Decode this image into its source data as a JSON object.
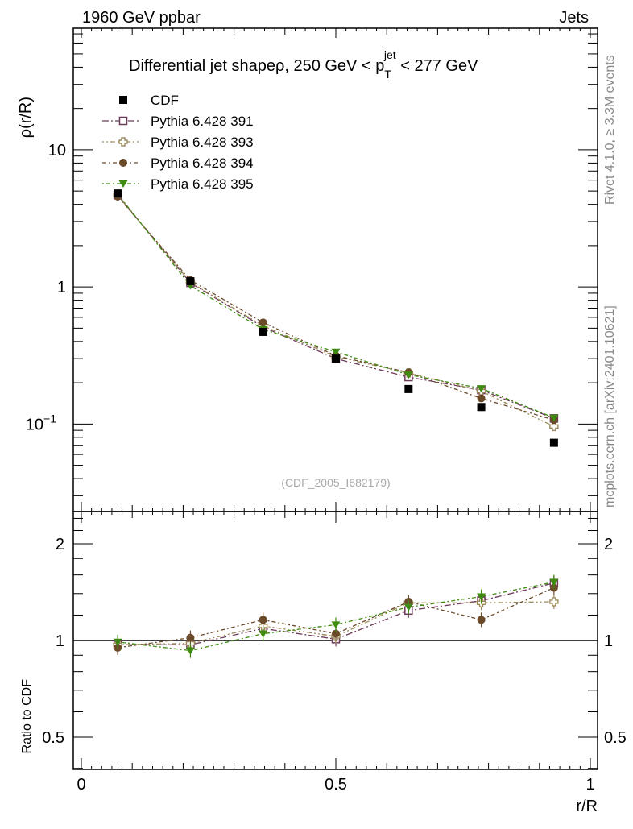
{
  "chart_data": [
    {
      "type": "line",
      "header_left": "1960 GeV ppbar",
      "header_right": "Jets",
      "title_prefix": "Differential jet shapeρ, 250 GeV < p",
      "title_sub": "T",
      "title_sup": "jet",
      "title_suffix": " < 277 GeV",
      "ylabel": "ρ(r/R)",
      "yscale": "log",
      "ylim": [
        0.023,
        77
      ],
      "xlim": [
        -0.01,
        1.01
      ],
      "ytick_labels": [
        {
          "value": 10,
          "label": "10"
        },
        {
          "value": 1,
          "label": "1"
        },
        {
          "value": 0.1,
          "label": "10",
          "exp": "−1"
        }
      ],
      "side_text_top": "Rivet 4.1.0, ≥ 3.3M events",
      "side_text_bottom": "mcplots.cern.ch [arXiv:2401.10621]",
      "watermark": "(CDF_2005_I682179)",
      "legend_position": "top-left",
      "x": [
        0.0714,
        0.2143,
        0.3571,
        0.5,
        0.6429,
        0.7857,
        0.9286
      ],
      "series": [
        {
          "name": "CDF",
          "marker": "filled-square",
          "color": "#000000",
          "values": [
            4.8,
            1.1,
            0.47,
            0.3,
            0.18,
            0.133,
            0.073
          ]
        },
        {
          "name": "Pythia 6.428 391",
          "marker": "open-square",
          "color": "#6e3a5a",
          "dash": "8,3,2,3",
          "values": [
            4.66,
            1.07,
            0.51,
            0.3,
            0.22,
            0.177,
            0.11
          ]
        },
        {
          "name": "Pythia 6.428 393",
          "marker": "open-cross",
          "color": "#9b8a5a",
          "dash": "2,3,2,3,6,3",
          "values": [
            4.66,
            1.08,
            0.52,
            0.31,
            0.236,
            0.174,
            0.096
          ]
        },
        {
          "name": "Pythia 6.428 394",
          "marker": "filled-circle",
          "color": "#6b4a2a",
          "dash": "5,3,2,3",
          "values": [
            4.56,
            1.12,
            0.55,
            0.315,
            0.238,
            0.154,
            0.107
          ]
        },
        {
          "name": "Pythia 6.428 395",
          "marker": "filled-triangle-down",
          "color": "#3f8a10",
          "dash": "2,3,5,3",
          "values": [
            4.75,
            1.02,
            0.49,
            0.336,
            0.229,
            0.182,
            0.111
          ]
        }
      ]
    },
    {
      "type": "line",
      "ylabel": "Ratio to CDF",
      "xlabel": "r/R",
      "yscale": "log",
      "ylim": [
        0.397,
        2.52
      ],
      "xlim": [
        -0.01,
        1.01
      ],
      "ytick_labels": [
        {
          "value": 2,
          "label": "2"
        },
        {
          "value": 1,
          "label": "1"
        },
        {
          "value": 0.5,
          "label": "0.5"
        }
      ],
      "xtick_labels": [
        {
          "value": 0,
          "label": "0"
        },
        {
          "value": 0.5,
          "label": "0.5"
        },
        {
          "value": 1,
          "label": "1"
        }
      ],
      "x": [
        0.0714,
        0.2143,
        0.3571,
        0.5,
        0.6429,
        0.7857,
        0.9286
      ],
      "series": [
        {
          "name": "Pythia 6.428 391",
          "values": [
            0.97,
            0.97,
            1.09,
            1.01,
            1.24,
            1.33,
            1.51
          ]
        },
        {
          "name": "Pythia 6.428 393",
          "values": [
            0.97,
            0.98,
            1.11,
            1.03,
            1.31,
            1.31,
            1.32
          ]
        },
        {
          "name": "Pythia 6.428 394",
          "values": [
            0.95,
            1.02,
            1.16,
            1.05,
            1.32,
            1.16,
            1.46
          ]
        },
        {
          "name": "Pythia 6.428 395",
          "values": [
            0.99,
            0.93,
            1.05,
            1.12,
            1.27,
            1.37,
            1.52
          ]
        }
      ]
    }
  ]
}
